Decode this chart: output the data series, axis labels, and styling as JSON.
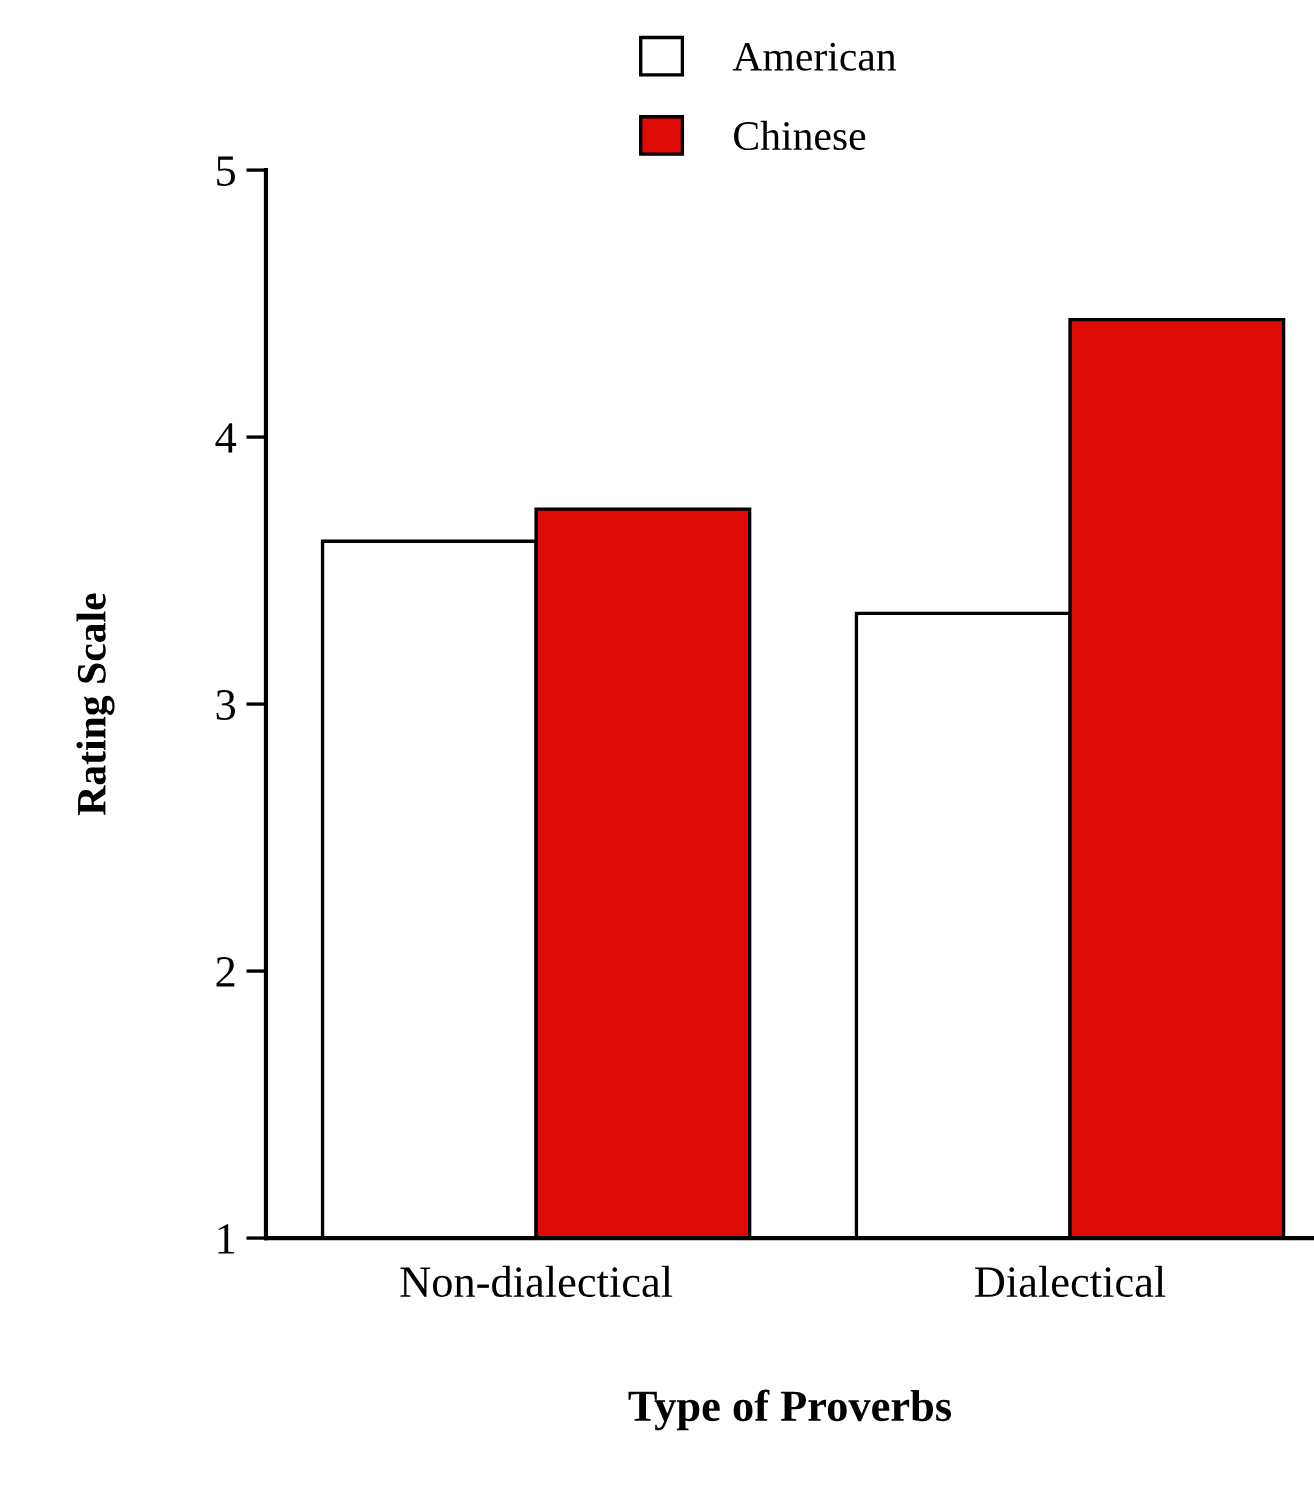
{
  "chart_data": {
    "type": "bar",
    "xlabel": "Type of Proverbs",
    "ylabel": "Rating Scale",
    "categories": [
      "Non-dialectical",
      "Dialectical"
    ],
    "series": [
      {
        "name": "American",
        "color": "#ffffff",
        "values": [
          3.61,
          3.34
        ]
      },
      {
        "name": "Chinese",
        "color": "#dd0a05",
        "values": [
          3.73,
          4.44
        ]
      }
    ],
    "ylim": [
      1,
      5
    ],
    "yticks": [
      1,
      2,
      3,
      4,
      5
    ],
    "grid": false,
    "legend": "top"
  }
}
